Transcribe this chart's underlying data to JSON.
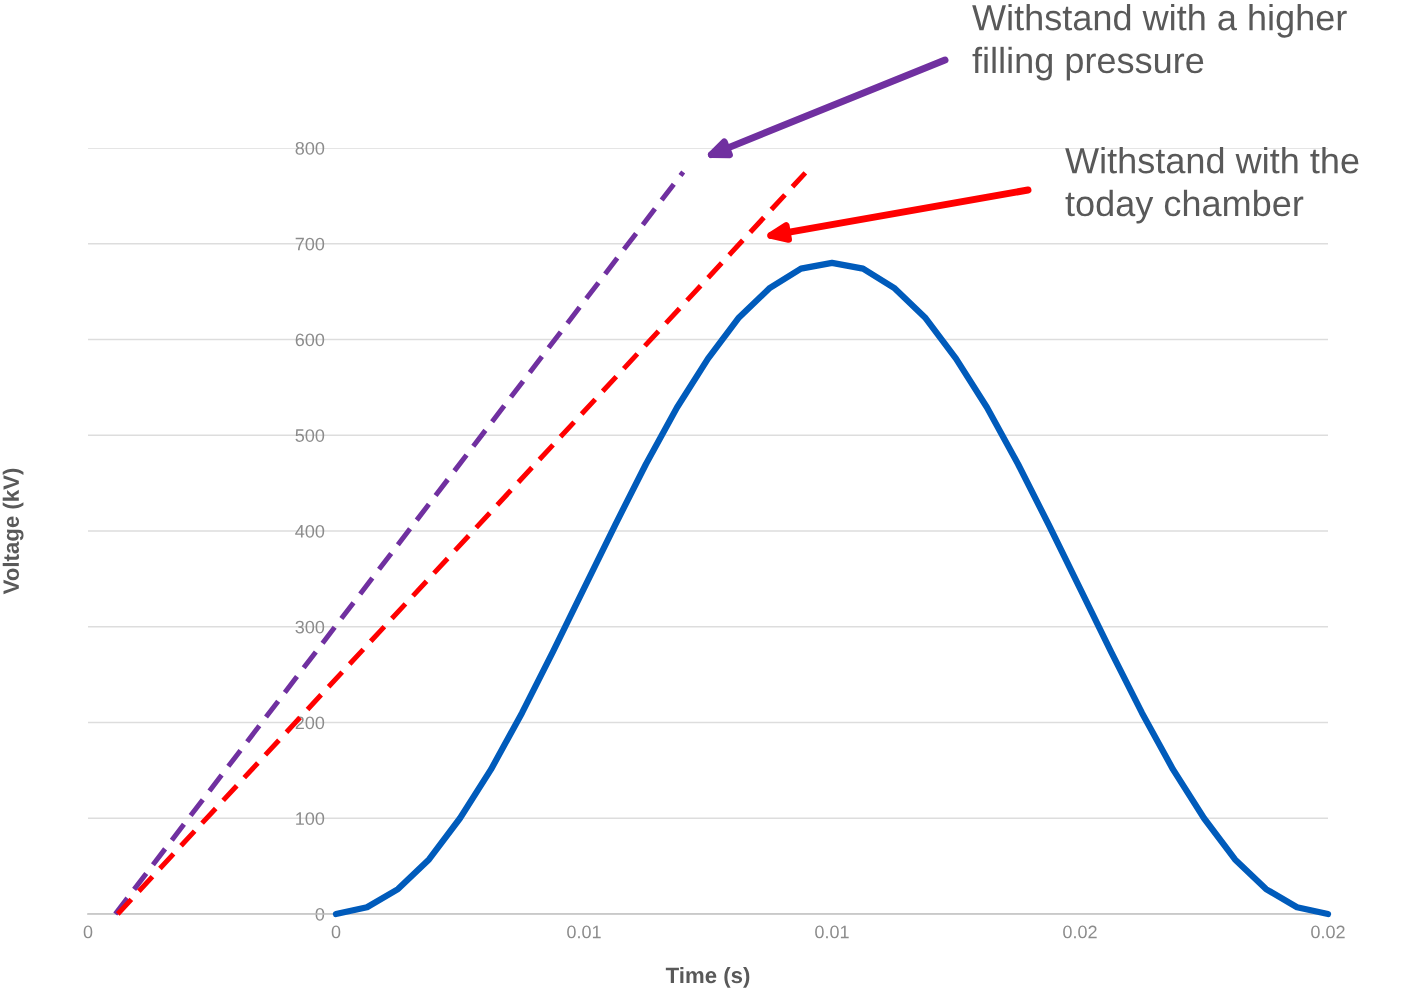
{
  "chart_data": {
    "type": "line",
    "xlabel": "Time (s)",
    "ylabel": "Voltage (kV)",
    "xlim": [
      0,
      0.02
    ],
    "ylim": [
      0,
      800
    ],
    "xticks": [
      0,
      {
        "value": 0.004,
        "label": "0"
      },
      {
        "value": 0.008,
        "label": "0.01"
      },
      {
        "value": 0.012,
        "label": "0.01"
      },
      {
        "value": 0.016,
        "label": "0.02"
      },
      {
        "value": 0.02,
        "label": "0.02"
      }
    ],
    "yticks": [
      0,
      100,
      200,
      300,
      400,
      500,
      600,
      700,
      800
    ],
    "grid": "y",
    "marker": "none",
    "series": [
      {
        "color": "#005bbb",
        "line_style": "solid",
        "x": [
          0.004,
          0.0045,
          0.005,
          0.0055,
          0.006,
          0.0065,
          0.007,
          0.0075,
          0.008,
          0.0085,
          0.009,
          0.0095,
          0.01,
          0.0105,
          0.011,
          0.0115,
          0.012,
          0.0125,
          0.013,
          0.0135,
          0.014,
          0.0145,
          0.015,
          0.0155,
          0.016,
          0.0165,
          0.017,
          0.0175,
          0.018,
          0.0185,
          0.019,
          0.0195,
          0.02
        ],
        "values": [
          0,
          7,
          26,
          57,
          100,
          151,
          210,
          274,
          340,
          406,
          470,
          529,
          580,
          623,
          654,
          674,
          680,
          674,
          654,
          623,
          580,
          529,
          470,
          406,
          340,
          274,
          210,
          151,
          100,
          57,
          26,
          7,
          0
        ]
      },
      {
        "color": "#7030a0",
        "line_style": "dashed",
        "x": [
          0.00044,
          0.0096
        ],
        "values": [
          0,
          775
        ]
      },
      {
        "color": "#ff0000",
        "line_style": "dashed",
        "x": [
          0.00048,
          0.01157
        ],
        "values": [
          0,
          774
        ]
      }
    ],
    "annotations": [
      "Withstand with a higher\nfilling pressure",
      "Withstand with the\ntoday chamber"
    ]
  }
}
